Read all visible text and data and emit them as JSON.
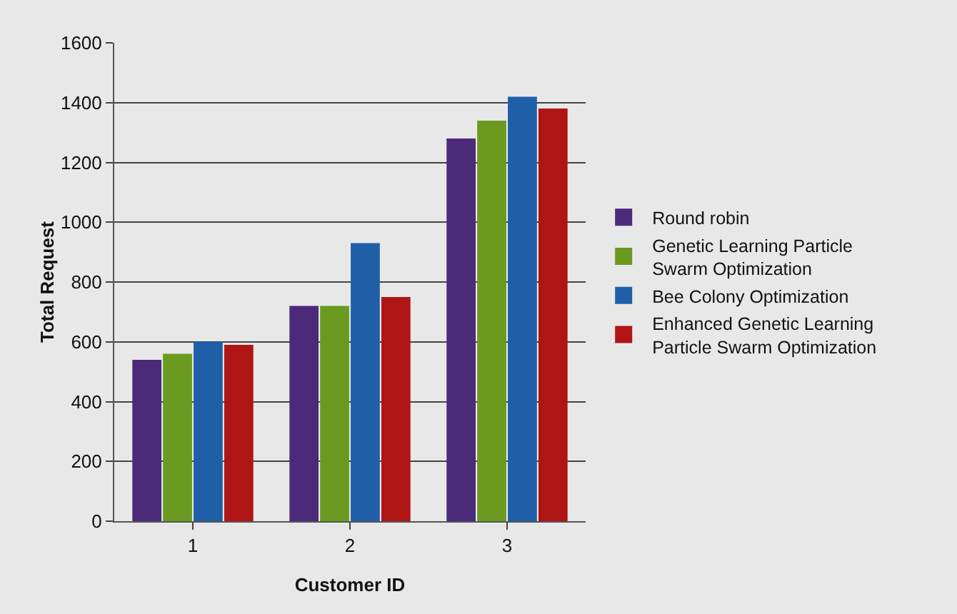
{
  "chart_data": {
    "type": "bar",
    "xlabel": "Customer ID",
    "ylabel": "Total Request",
    "categories": [
      "1",
      "2",
      "3"
    ],
    "series": [
      {
        "name": "Round robin",
        "color": "#4b2a7a",
        "values": [
          540,
          720,
          1280
        ]
      },
      {
        "name": "Genetic Learning Particle Swarm Optimization",
        "color": "#6a9a1f",
        "values": [
          560,
          720,
          1340
        ]
      },
      {
        "name": "Bee Colony Optimization",
        "color": "#1f5fa8",
        "values": [
          600,
          930,
          1420
        ]
      },
      {
        "name": "Enhanced Genetic Learning Particle Swarm Optimization",
        "color": "#b01515",
        "values": [
          590,
          750,
          1380
        ]
      }
    ],
    "ylim": [
      0,
      1600
    ],
    "yticks": [
      0,
      200,
      400,
      600,
      800,
      1000,
      1200,
      1400,
      1600
    ],
    "grid": "y",
    "legend": "right"
  }
}
